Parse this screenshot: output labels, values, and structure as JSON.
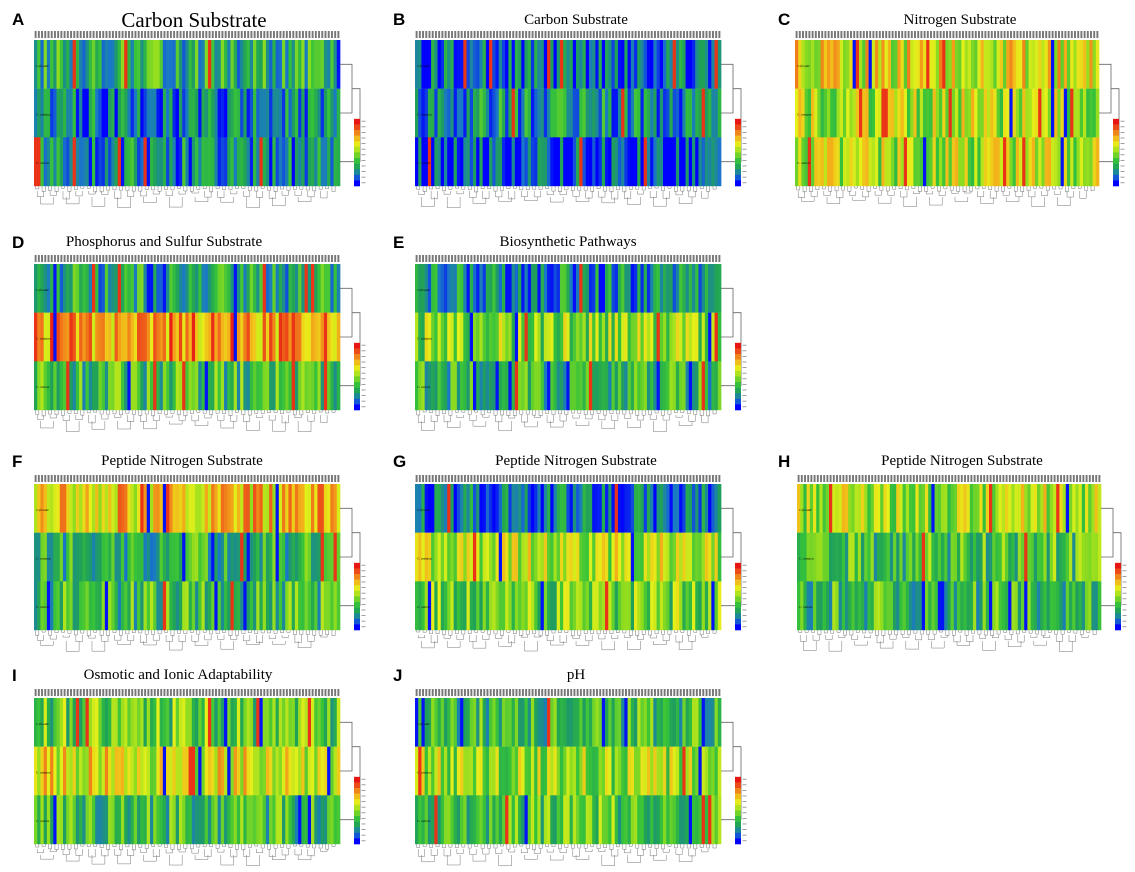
{
  "figure": {
    "panels": [
      {
        "letter": "A",
        "title": "Carbon Substrate",
        "cols": 95,
        "profile": "carbonA"
      },
      {
        "letter": "B",
        "title": "Carbon Substrate",
        "cols": 95,
        "profile": "carbonB"
      },
      {
        "letter": "C",
        "title": "Nitrogen Substrate",
        "cols": 95,
        "profile": "nitrogen"
      },
      {
        "letter": "D",
        "title": "Phosphorus and Sulfur Substrate",
        "cols": 95,
        "profile": "phos"
      },
      {
        "letter": "E",
        "title": "Biosynthetic Pathways",
        "cols": 95,
        "profile": "bio"
      },
      {
        "letter": "F",
        "title": "Peptide Nitrogen Substrate",
        "cols": 95,
        "profile": "pepF"
      },
      {
        "letter": "G",
        "title": "Peptide Nitrogen Substrate",
        "cols": 95,
        "profile": "pepG"
      },
      {
        "letter": "H",
        "title": "Peptide Nitrogen Substrate",
        "cols": 95,
        "profile": "pepH"
      },
      {
        "letter": "I",
        "title": "Osmotic and Ionic Adaptability",
        "cols": 95,
        "profile": "osm"
      },
      {
        "letter": "J",
        "title": "pH",
        "cols": 95,
        "profile": "ph"
      }
    ],
    "row_labels": [
      "C.freudii",
      "C. amigna",
      "C. ratinis"
    ]
  },
  "chart_data": {
    "type": "heatmap",
    "rows": [
      "C.freudii",
      "C. amigna",
      "C. ratinis"
    ],
    "colorscale": [
      "#0000ff",
      "#1a78c8",
      "#1fa05a",
      "#36c23a",
      "#8fdc1f",
      "#e6f01a",
      "#f3b21a",
      "#ee5f1a",
      "#e81515"
    ],
    "panels": [
      {
        "letter": "A",
        "title": "Carbon Substrate",
        "row_means": [
          0.3,
          0.18,
          0.2
        ]
      },
      {
        "letter": "B",
        "title": "Carbon Substrate",
        "row_means": [
          0.12,
          0.22,
          0.08
        ]
      },
      {
        "letter": "C",
        "title": "Nitrogen Substrate",
        "row_means": [
          0.62,
          0.55,
          0.55
        ]
      },
      {
        "letter": "D",
        "title": "Phosphorus and Sulfur Substrate",
        "row_means": [
          0.28,
          0.78,
          0.35
        ]
      },
      {
        "letter": "E",
        "title": "Biosynthetic Pathways",
        "row_means": [
          0.22,
          0.48,
          0.32
        ]
      },
      {
        "letter": "F",
        "title": "Peptide Nitrogen Substrate",
        "row_means": [
          0.7,
          0.32,
          0.35
        ]
      },
      {
        "letter": "G",
        "title": "Peptide Nitrogen Substrate",
        "row_means": [
          0.15,
          0.55,
          0.45
        ]
      },
      {
        "letter": "H",
        "title": "Peptide Nitrogen Substrate",
        "row_means": [
          0.55,
          0.38,
          0.35
        ]
      },
      {
        "letter": "I",
        "title": "Osmotic and Ionic Adaptability",
        "row_means": [
          0.42,
          0.62,
          0.35
        ]
      },
      {
        "letter": "J",
        "title": "pH",
        "row_means": [
          0.35,
          0.52,
          0.4
        ]
      }
    ]
  }
}
